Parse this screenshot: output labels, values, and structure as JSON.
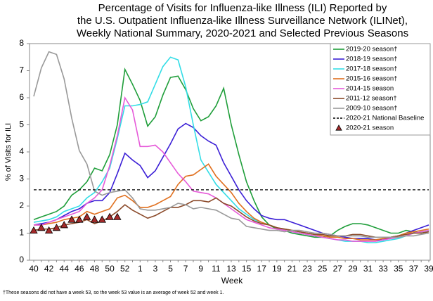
{
  "chart_data": {
    "type": "line",
    "title": [
      "Percentage of Visits for Influenza-like Illness (ILI) Reported by",
      "the U.S. Outpatient Influenza-like Illness Surveillance Network (ILINet),",
      "Weekly National Summary, 2020-2021 and Selected Previous Seasons"
    ],
    "y_label": "% of Visits for ILI",
    "x_label": "Week",
    "footnote": "†These seasons did not have a week 53, so the week 53 value is an average of week 52 and week 1.",
    "categories": [
      "40",
      null,
      "42",
      null,
      "44",
      null,
      "46",
      null,
      "48",
      null,
      "50",
      null,
      "52",
      null,
      "1",
      null,
      "3",
      null,
      "5",
      null,
      "7",
      null,
      "9",
      null,
      "11",
      null,
      "13",
      null,
      "15",
      null,
      "17",
      null,
      "19",
      null,
      "21",
      null,
      "23",
      null,
      "25",
      null,
      "27",
      null,
      "29",
      null,
      "31",
      null,
      "33",
      null,
      "35",
      null,
      "37",
      null,
      "39"
    ],
    "ylim": [
      0,
      8
    ],
    "yticks": [
      0,
      1,
      2,
      3,
      4,
      5,
      6,
      7,
      8
    ],
    "legend": "upper right",
    "series": [
      {
        "name": "2019-20 season†",
        "color": "#1f9e3a",
        "values": [
          1.5,
          1.6,
          1.7,
          1.8,
          2.0,
          2.4,
          2.6,
          2.9,
          3.4,
          3.3,
          3.9,
          5.0,
          7.05,
          6.5,
          5.9,
          4.95,
          5.3,
          6.1,
          6.75,
          6.8,
          6.3,
          5.6,
          5.15,
          5.3,
          5.7,
          6.35,
          5.0,
          3.9,
          2.9,
          2.2,
          1.6,
          1.3,
          1.15,
          1.1,
          1.0,
          0.95,
          0.9,
          0.85,
          0.85,
          0.9,
          1.1,
          1.25,
          1.35,
          1.35,
          1.3,
          1.2,
          1.1,
          1.0,
          1.0,
          1.1,
          1.05,
          1.0,
          1.05
        ]
      },
      {
        "name": "2018-19 season†",
        "color": "#3b1fd6",
        "values": [
          1.3,
          1.35,
          1.4,
          1.5,
          1.65,
          1.8,
          1.9,
          2.1,
          2.2,
          2.2,
          2.5,
          3.2,
          3.95,
          3.7,
          3.5,
          3.05,
          3.3,
          3.8,
          4.3,
          4.85,
          5.05,
          4.9,
          4.6,
          4.4,
          4.25,
          3.6,
          3.1,
          2.6,
          2.2,
          1.9,
          1.65,
          1.55,
          1.5,
          1.5,
          1.4,
          1.3,
          1.2,
          1.1,
          1.0,
          0.95,
          0.9,
          0.85,
          0.8,
          0.8,
          0.8,
          0.75,
          0.75,
          0.85,
          0.9,
          1.0,
          1.1,
          1.2,
          1.3
        ]
      },
      {
        "name": "2017-18 season†",
        "color": "#33dde6",
        "values": [
          1.4,
          1.45,
          1.5,
          1.6,
          1.8,
          1.9,
          2.0,
          2.3,
          2.5,
          2.9,
          3.4,
          4.5,
          5.7,
          5.7,
          5.75,
          5.85,
          6.5,
          7.15,
          7.5,
          7.4,
          6.4,
          5.0,
          3.7,
          3.25,
          2.8,
          2.5,
          2.2,
          1.9,
          1.7,
          1.5,
          1.4,
          1.3,
          1.2,
          1.1,
          1.05,
          1.0,
          0.95,
          0.9,
          0.85,
          0.8,
          0.75,
          0.7,
          0.7,
          0.7,
          0.65,
          0.65,
          0.7,
          0.75,
          0.8,
          0.9,
          1.0,
          1.05,
          1.1
        ]
      },
      {
        "name": "2015-16 season†",
        "color": "#e0701f",
        "values": [
          1.3,
          1.3,
          1.35,
          1.4,
          1.5,
          1.55,
          1.6,
          1.8,
          1.7,
          1.8,
          1.9,
          2.3,
          2.4,
          2.2,
          1.95,
          1.95,
          2.05,
          2.2,
          2.35,
          2.8,
          3.1,
          3.15,
          3.35,
          3.55,
          3.1,
          2.8,
          2.5,
          2.1,
          1.8,
          1.55,
          1.4,
          1.3,
          1.2,
          1.15,
          1.1,
          1.05,
          1.0,
          0.95,
          0.9,
          0.85,
          0.85,
          0.8,
          0.8,
          0.75,
          0.75,
          0.75,
          0.8,
          0.85,
          0.9,
          1.0,
          1.05,
          1.1,
          1.15
        ]
      },
      {
        "name": "2014-15 season",
        "color": "#e65ad9",
        "values": [
          1.3,
          1.3,
          1.4,
          1.5,
          1.6,
          1.7,
          1.8,
          2.1,
          2.3,
          2.6,
          3.5,
          4.6,
          6.0,
          5.55,
          4.2,
          4.2,
          4.25,
          4.0,
          3.6,
          3.2,
          2.9,
          2.55,
          2.5,
          2.45,
          2.3,
          2.1,
          1.9,
          1.7,
          1.5,
          1.4,
          1.3,
          1.2,
          1.15,
          1.1,
          1.05,
          1.0,
          0.95,
          0.9,
          0.85,
          0.8,
          0.75,
          0.75,
          0.7,
          0.7,
          0.7,
          0.7,
          0.75,
          0.8,
          0.85,
          0.9,
          1.0,
          1.05,
          1.1
        ]
      },
      {
        "name": "2011-12 season†",
        "color": "#8b4a2a",
        "values": [
          1.1,
          1.15,
          1.15,
          1.2,
          1.3,
          1.35,
          1.4,
          1.5,
          1.35,
          1.45,
          1.6,
          1.8,
          2.05,
          1.85,
          1.7,
          1.55,
          1.65,
          1.8,
          1.95,
          1.95,
          2.05,
          2.2,
          2.2,
          2.15,
          2.3,
          2.1,
          2.0,
          1.8,
          1.6,
          1.45,
          1.35,
          1.3,
          1.2,
          1.15,
          1.1,
          1.05,
          1.0,
          0.95,
          0.95,
          0.9,
          0.9,
          0.9,
          0.95,
          0.95,
          0.9,
          0.85,
          0.85,
          0.85,
          0.9,
          0.95,
          1.0,
          1.0,
          1.05
        ]
      },
      {
        "name": "2009-10 season†",
        "color": "#999999",
        "values": [
          6.05,
          7.1,
          7.7,
          7.6,
          6.7,
          5.25,
          4.05,
          3.55,
          2.55,
          2.4,
          2.5,
          2.55,
          2.6,
          2.3,
          1.9,
          1.85,
          1.85,
          1.9,
          1.95,
          2.1,
          2.05,
          1.9,
          1.95,
          1.9,
          1.85,
          1.7,
          1.55,
          1.5,
          1.25,
          1.2,
          1.15,
          1.1,
          1.1,
          1.05,
          1.1,
          1.1,
          1.05,
          1.0,
          1.0,
          0.95,
          0.9,
          0.9,
          0.9,
          0.9,
          0.85,
          0.85,
          0.85,
          0.85,
          0.85,
          0.9,
          0.9,
          0.95,
          1.0
        ]
      },
      {
        "name": "2020-21 National Baseline",
        "color": "#000000",
        "dashed": true,
        "values": [
          2.6,
          2.6,
          2.6,
          2.6,
          2.6,
          2.6,
          2.6,
          2.6,
          2.6,
          2.6,
          2.6,
          2.6,
          2.6,
          2.6,
          2.6,
          2.6,
          2.6,
          2.6,
          2.6,
          2.6,
          2.6,
          2.6,
          2.6,
          2.6,
          2.6,
          2.6,
          2.6,
          2.6,
          2.6,
          2.6,
          2.6,
          2.6,
          2.6,
          2.6,
          2.6,
          2.6,
          2.6,
          2.6,
          2.6,
          2.6,
          2.6,
          2.6,
          2.6,
          2.6,
          2.6,
          2.6,
          2.6,
          2.6,
          2.6,
          2.6,
          2.6,
          2.6,
          2.6
        ]
      },
      {
        "name": "2020-21 season",
        "color": "#a52a2a",
        "marker": "triangle",
        "values": [
          1.1,
          1.2,
          1.1,
          1.2,
          1.3,
          1.5,
          1.5,
          1.6,
          1.5,
          1.5,
          1.6,
          1.6,
          null,
          null,
          null,
          null,
          null,
          null,
          null,
          null,
          null,
          null,
          null,
          null,
          null,
          null,
          null,
          null,
          null,
          null,
          null,
          null,
          null,
          null,
          null,
          null,
          null,
          null,
          null,
          null,
          null,
          null,
          null,
          null,
          null,
          null,
          null,
          null,
          null,
          null,
          null,
          null,
          null
        ]
      }
    ]
  }
}
